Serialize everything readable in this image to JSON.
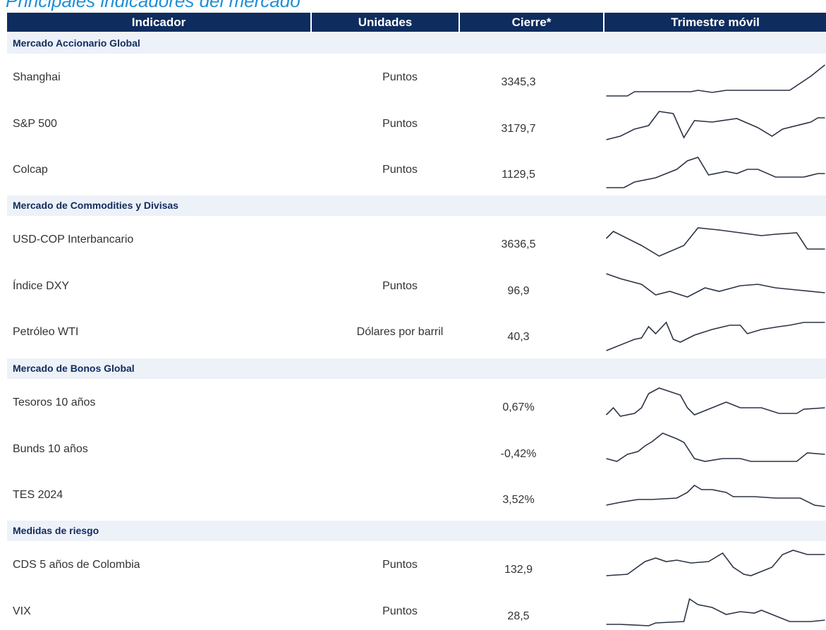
{
  "title": "Principales indicadores del mercado",
  "header": [
    "Indicador",
    "Unidades",
    "Cierre*",
    "Trimestre móvil"
  ],
  "sections": [
    {
      "title": "Mercado Accionario Global",
      "rows": [
        {
          "indicator": "Shanghai",
          "units": "Puntos",
          "close": "3345,3"
        },
        {
          "indicator": "S&P 500",
          "units": "Puntos",
          "close": "3179,7"
        },
        {
          "indicator": "Colcap",
          "units": "Puntos",
          "close": "1129,5"
        }
      ]
    },
    {
      "title": "Mercado de Commodities y Divisas",
      "rows": [
        {
          "indicator": "USD-COP Interbancario",
          "close": "3636,5"
        },
        {
          "indicator": "Índice DXY",
          "units": "Puntos",
          "close": "96,9"
        },
        {
          "indicator": "Petróleo WTI",
          "units": "Dólares por barril",
          "close": "40,3"
        }
      ]
    },
    {
      "title": "Mercado de Bonos Global",
      "rows": [
        {
          "indicator": "Tesoros 10 años",
          "close": "0,67%"
        },
        {
          "indicator": "Bunds 10 años",
          "close": "-0,42%"
        },
        {
          "indicator": "TES 2024",
          "close": "3,52%"
        }
      ]
    },
    {
      "title": "Medidas de riesgo",
      "rows": [
        {
          "indicator": "CDS 5 años de Colombia",
          "units": "Puntos",
          "close": "132,9"
        },
        {
          "indicator": "VIX",
          "units": "Puntos",
          "close": "28,5"
        }
      ]
    }
  ]
}
